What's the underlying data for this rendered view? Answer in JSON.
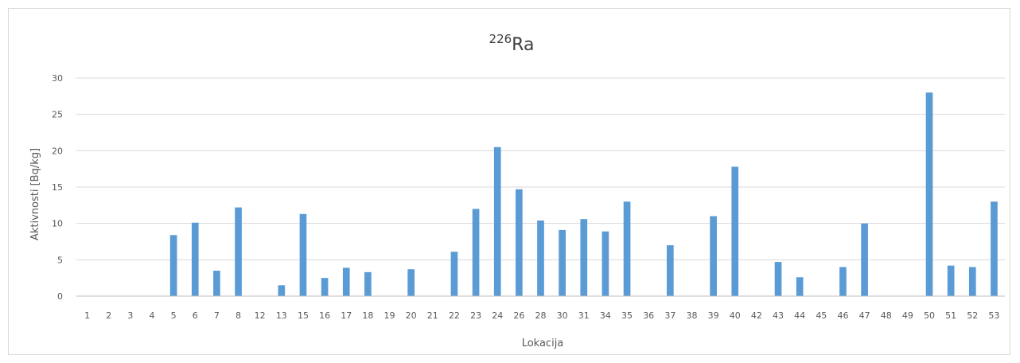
{
  "chart_data": {
    "type": "bar",
    "title": {
      "superscript": "226",
      "main": "Ra"
    },
    "xlabel": "Lokacija",
    "ylabel": "Aktivnosti [Bq/kg]",
    "ylim": [
      0,
      30
    ],
    "yticks": [
      0,
      5,
      10,
      15,
      20,
      25,
      30
    ],
    "grid": true,
    "legend": "none",
    "bar_color": "#5b9bd5",
    "categories": [
      "1",
      "2",
      "3",
      "4",
      "5",
      "6",
      "7",
      "8",
      "12",
      "13",
      "15",
      "16",
      "17",
      "18",
      "19",
      "20",
      "21",
      "22",
      "23",
      "24",
      "26",
      "28",
      "30",
      "31",
      "34",
      "35",
      "36",
      "37",
      "38",
      "39",
      "40",
      "42",
      "43",
      "44",
      "45",
      "46",
      "47",
      "48",
      "49",
      "50",
      "51",
      "52",
      "53"
    ],
    "values": [
      0,
      0,
      0,
      0,
      8.4,
      10.1,
      3.5,
      12.2,
      0,
      1.5,
      11.3,
      2.5,
      3.9,
      3.3,
      0,
      3.7,
      0,
      6.1,
      12.0,
      20.5,
      14.7,
      10.4,
      9.1,
      10.6,
      8.9,
      13.0,
      0,
      7.0,
      0,
      11.0,
      17.8,
      0,
      4.7,
      2.6,
      0,
      4.0,
      10.0,
      0,
      0,
      28.0,
      4.2,
      4.0,
      13.0
    ]
  }
}
